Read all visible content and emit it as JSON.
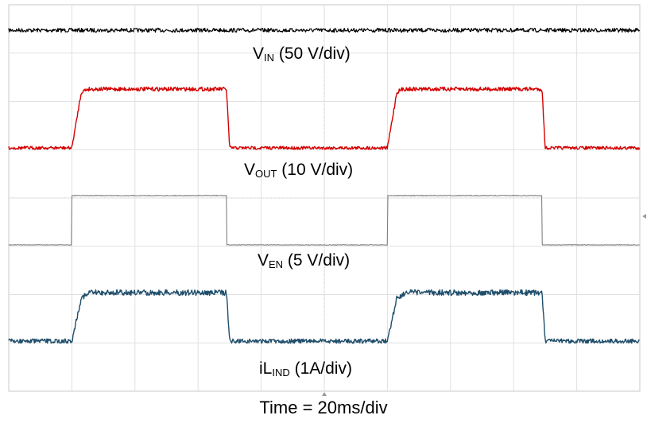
{
  "chart_data": {
    "type": "line",
    "xlabel": "Time = 20ms/div",
    "x_divisions": 10,
    "y_divisions": 8,
    "grid": true,
    "series": [
      {
        "name": "V",
        "sub": "IN",
        "scale": " (50 V/div)",
        "color": "#000000",
        "noise": 5,
        "points": [
          [
            0,
            1
          ],
          [
            10,
            1
          ]
        ]
      },
      {
        "name": "V",
        "sub": "OUT",
        "scale": " (10 V/div)",
        "color": "#d40000",
        "noise": 5,
        "points": [
          [
            0,
            0
          ],
          [
            1.0,
            0
          ],
          [
            1.15,
            0.95
          ],
          [
            1.25,
            1
          ],
          [
            3.45,
            1
          ],
          [
            3.5,
            0
          ],
          [
            6.0,
            0
          ],
          [
            6.15,
            0.95
          ],
          [
            6.25,
            1
          ],
          [
            8.45,
            1
          ],
          [
            8.5,
            0
          ],
          [
            10,
            0
          ]
        ]
      },
      {
        "name": "V",
        "sub": "EN",
        "scale": " (5 V/div)",
        "color": "#808080",
        "noise": 1,
        "points": [
          [
            0,
            0
          ],
          [
            1.0,
            0
          ],
          [
            1.0,
            1
          ],
          [
            3.45,
            1
          ],
          [
            3.45,
            0
          ],
          [
            6.0,
            0
          ],
          [
            6.0,
            1
          ],
          [
            8.45,
            1
          ],
          [
            8.45,
            0
          ],
          [
            10,
            0
          ]
        ]
      },
      {
        "name": "iL",
        "sub": "IND",
        "scale": " (1A/div)",
        "color": "#1f4e6b",
        "noise": 7,
        "points": [
          [
            0,
            0
          ],
          [
            1.0,
            0
          ],
          [
            1.15,
            0.9
          ],
          [
            1.3,
            1
          ],
          [
            3.45,
            1
          ],
          [
            3.5,
            0
          ],
          [
            6.0,
            0
          ],
          [
            6.15,
            0.9
          ],
          [
            6.3,
            1
          ],
          [
            8.45,
            1
          ],
          [
            8.5,
            0
          ],
          [
            10,
            0
          ]
        ]
      }
    ]
  }
}
